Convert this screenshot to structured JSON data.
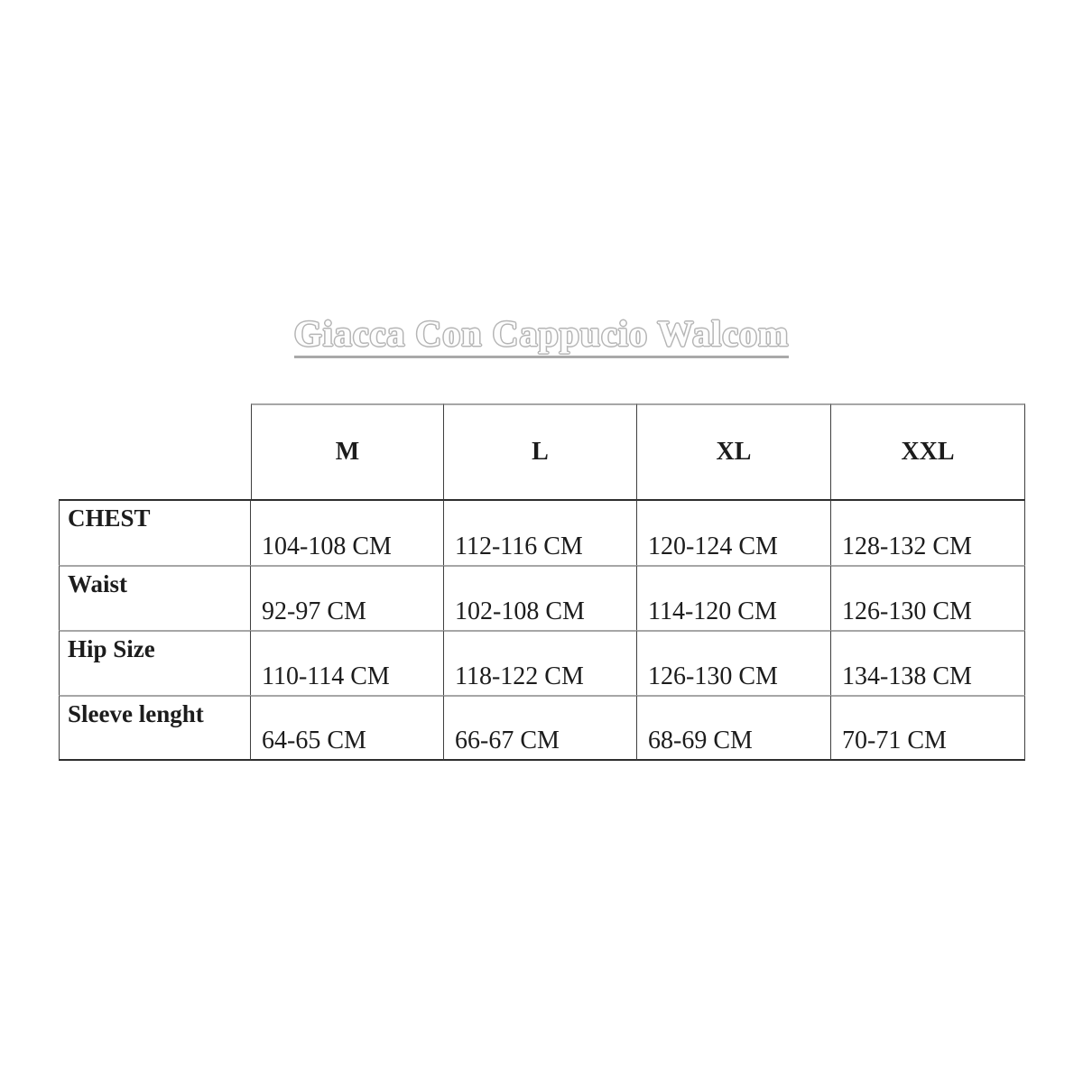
{
  "title": {
    "text": "Giacca Con Cappucio Walcom"
  },
  "size_chart": {
    "columns": [
      "M",
      "L",
      "XL",
      "XXL"
    ],
    "rows": [
      {
        "label": "CHEST",
        "values": [
          "104-108 CM",
          "112-116 CM",
          "120-124 CM",
          "128-132 CM"
        ]
      },
      {
        "label": "Waist",
        "values": [
          "92-97 CM",
          "102-108 CM",
          "114-120 CM",
          "126-130 CM"
        ]
      },
      {
        "label": "Hip Size",
        "values": [
          "110-114 CM",
          "118-122 CM",
          "126-130 CM",
          "134-138 CM"
        ]
      },
      {
        "label": "Sleeve lenght",
        "values": [
          "64-65 CM",
          "66-67 CM",
          "68-69 CM",
          "70-71 CM"
        ]
      }
    ]
  },
  "colors": {
    "title_outline": "#b5b5b5",
    "title_underline": "#a9a9a9",
    "grid_line_gray": "#a6a6a6",
    "grid_line_dark": "#2e2e2e",
    "text": "#1c1c1c"
  }
}
